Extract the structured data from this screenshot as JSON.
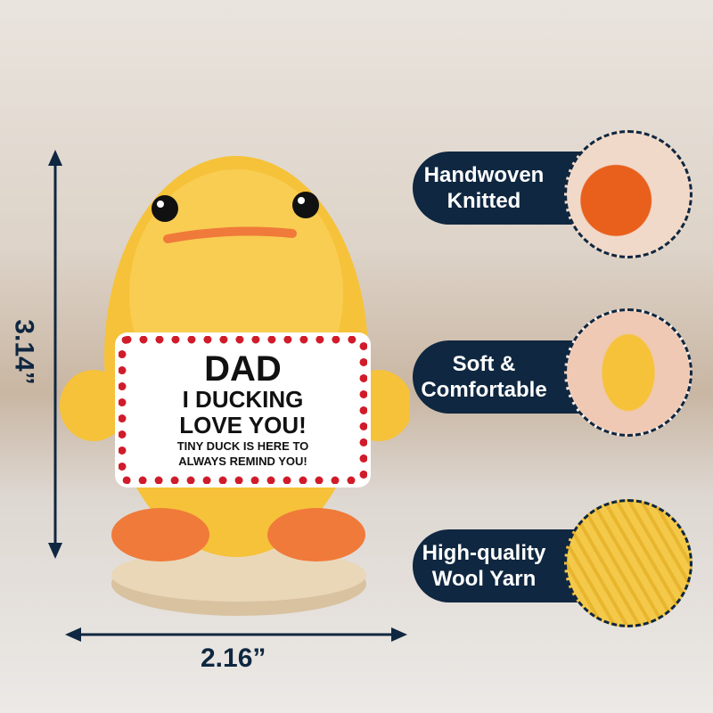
{
  "dimensions": {
    "height": "3.14”",
    "width": "2.16”"
  },
  "card": {
    "line1": "DAD",
    "line2": "I DUCKING",
    "line3": "LOVE YOU!",
    "line4": "TINY DUCK IS HERE TO",
    "line5": "ALWAYS REMIND YOU!"
  },
  "features": [
    {
      "line1": "Handwoven",
      "line2": "Knitted",
      "icon": "knitting-hands-photo"
    },
    {
      "line1": "Soft &",
      "line2": "Comfortable",
      "icon": "duck-in-hands-photo"
    },
    {
      "line1": "High-quality",
      "line2": "Wool Yarn",
      "icon": "yarn-closeup-photo"
    }
  ],
  "colors": {
    "navy": "#0f2740",
    "duck_yellow": "#f6c23a",
    "feet_orange": "#f07a3a",
    "heart_red": "#d01c2a"
  }
}
